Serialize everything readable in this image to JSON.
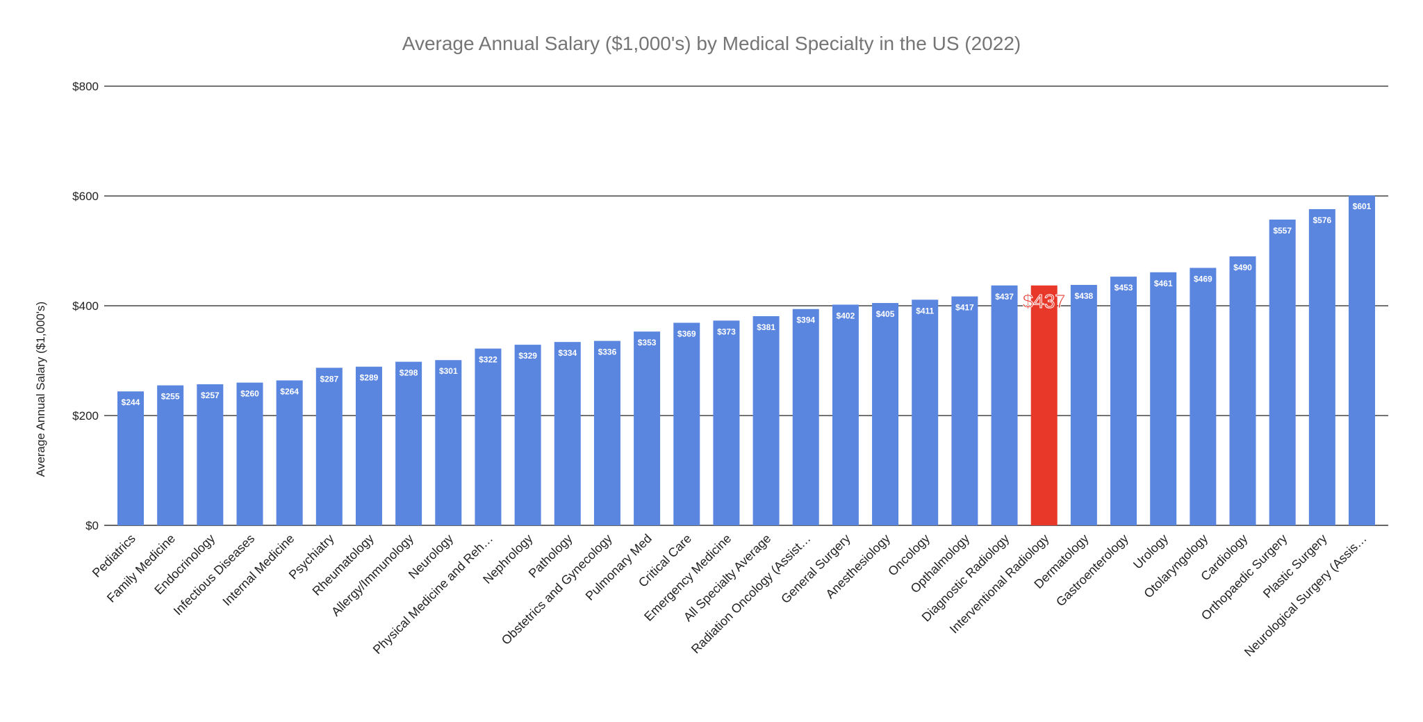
{
  "chart_data": {
    "type": "bar",
    "title": "Average Annual Salary ($1,000's) by Medical Specialty in the US (2022)",
    "xlabel": "",
    "ylabel": "Average Annual Salary ($1,000's)",
    "ylim": [
      0,
      800
    ],
    "yticks": [
      0,
      200,
      400,
      600,
      800
    ],
    "ytick_labels": [
      "$0",
      "$200",
      "$400",
      "$600",
      "$800"
    ],
    "grid": true,
    "categories": [
      "Pediatrics",
      "Family Medicine",
      "Endocrinology",
      "Infectious Diseases",
      "Internal Medicine",
      "Psychiatry",
      "Rheumatology",
      "Allergy/Immunology",
      "Neurology",
      "Physical Medicine and Reh…",
      "Nephrology",
      "Pathology",
      "Obstetrics and Gynecology",
      "Pulmonary Med",
      "Critical Care",
      "Emergency Medicine",
      "All Specialty Average",
      "Radiation Oncology (Assist…",
      "General Surgery",
      "Anesthesiology",
      "Oncology",
      "Opthalmology",
      "Diagnostic Radiology",
      "Interventional Radiology",
      "Dermatology",
      "Gastroenterology",
      "Urology",
      "Otolaryngology",
      "Cardiology",
      "Orthopaedic Surgery",
      "Plastic Surgery",
      "Neurological Surgery (Assis…"
    ],
    "values": [
      244,
      255,
      257,
      260,
      264,
      287,
      289,
      298,
      301,
      322,
      329,
      334,
      336,
      353,
      369,
      373,
      381,
      394,
      402,
      405,
      411,
      417,
      437,
      437,
      438,
      453,
      461,
      469,
      490,
      557,
      576,
      601
    ],
    "data_labels": [
      "$244",
      "$255",
      "$257",
      "$260",
      "$264",
      "$287",
      "$289",
      "$298",
      "$301",
      "$322",
      "$329",
      "$334",
      "$336",
      "$353",
      "$369",
      "$373",
      "$381",
      "$394",
      "$402",
      "$405",
      "$411",
      "$417",
      "$437",
      "$437",
      "$438",
      "$453",
      "$461",
      "$469",
      "$490",
      "$557",
      "$576",
      "$601"
    ],
    "highlight_index": 23,
    "colors": {
      "bar": "#5a86e0",
      "highlight": "#e8382a",
      "title": "#757575",
      "grid": "#333333"
    }
  }
}
